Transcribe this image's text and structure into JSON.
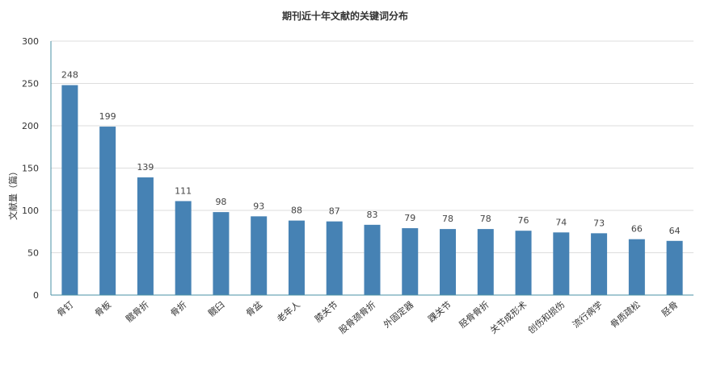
{
  "chart_data": {
    "type": "bar",
    "title": "期刊近十年文献的关键词分布",
    "xlabel": "",
    "ylabel": "文献量（篇）",
    "ylim": [
      0,
      300
    ],
    "yticks": [
      0,
      50,
      100,
      150,
      200,
      250,
      300
    ],
    "grid": true,
    "categories": [
      "骨钉",
      "骨板",
      "髋骨折",
      "骨折",
      "髋臼",
      "骨盆",
      "老年人",
      "膝关节",
      "股骨颈骨折",
      "外固定器",
      "踝关节",
      "胫骨骨折",
      "关节成形术",
      "创伤和损伤",
      "流行病学",
      "骨质疏松",
      "胫骨"
    ],
    "values": [
      248,
      199,
      139,
      111,
      98,
      93,
      88,
      87,
      83,
      79,
      78,
      78,
      76,
      74,
      73,
      66,
      64
    ],
    "colors": {
      "bar": "#4682b4",
      "axis": "#4a90a4",
      "grid": "#dddddd"
    }
  }
}
